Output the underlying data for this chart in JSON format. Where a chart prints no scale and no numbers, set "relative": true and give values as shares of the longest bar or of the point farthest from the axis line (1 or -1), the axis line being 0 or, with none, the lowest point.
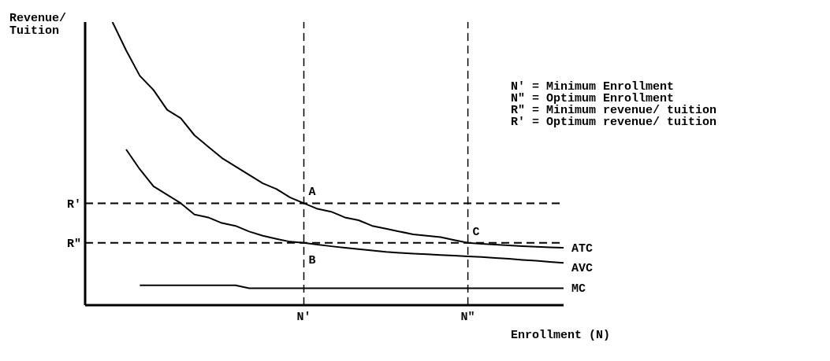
{
  "chart_data": {
    "type": "line",
    "relative": true,
    "xlabel": "Enrollment (N)",
    "ylabel": "Revenue/\nTuition",
    "categories": [
      null,
      null,
      null,
      null,
      null,
      null,
      null,
      null,
      null,
      null,
      null,
      null,
      null,
      null,
      null,
      null,
      "N'",
      null,
      null,
      null,
      null,
      null,
      null,
      null,
      null,
      null,
      null,
      null,
      "N\"",
      null,
      null,
      null,
      null,
      null,
      null,
      null
    ],
    "series": [
      {
        "name": "ATC",
        "color": "#000000",
        "values": [
          null,
          null,
          1,
          0.9,
          0.81,
          0.76,
          0.69,
          0.66,
          0.6,
          0.56,
          0.52,
          0.49,
          0.46,
          0.43,
          0.41,
          0.38,
          0.36,
          0.34,
          0.33,
          0.31,
          0.3,
          0.28,
          0.27,
          0.26,
          0.25,
          0.245,
          0.24,
          0.23,
          0.22,
          0.217,
          0.214,
          0.211,
          0.208,
          0.206,
          0.204,
          0.203
        ]
      },
      {
        "name": "AVC",
        "color": "#000000",
        "values": [
          null,
          null,
          null,
          0.55,
          0.48,
          0.42,
          0.39,
          0.36,
          0.32,
          0.31,
          0.29,
          0.28,
          0.26,
          0.245,
          0.234,
          0.224,
          0.22,
          0.214,
          0.208,
          0.203,
          0.198,
          0.193,
          0.188,
          0.185,
          0.182,
          0.18,
          0.177,
          0.175,
          0.172,
          0.17,
          0.167,
          0.164,
          0.16,
          0.157,
          0.153,
          0.149
        ]
      },
      {
        "name": "MC",
        "color": "#000000",
        "values": [
          null,
          null,
          null,
          null,
          0.07,
          0.07,
          0.07,
          0.07,
          0.07,
          0.07,
          0.07,
          0.07,
          0.06,
          0.06,
          0.06,
          0.06,
          0.06,
          0.06,
          0.06,
          0.06,
          0.06,
          0.06,
          0.06,
          0.06,
          0.06,
          0.06,
          0.06,
          0.06,
          0.06,
          0.06,
          0.06,
          0.06,
          0.06,
          0.06,
          0.06,
          0.06
        ]
      }
    ],
    "ref_lines": [
      {
        "axis": "y",
        "value": 0.36,
        "label": "R'",
        "color": "#000000",
        "line_style": "dashed"
      },
      {
        "axis": "y",
        "value": 0.22,
        "label": "R\"",
        "color": "#000000",
        "line_style": "dashed"
      },
      {
        "axis": "x",
        "value": "N'",
        "color": "#000000",
        "line_style": "dashed"
      },
      {
        "axis": "x",
        "value": "N\"",
        "color": "#000000",
        "line_style": "dashed"
      }
    ],
    "annotations": [
      {
        "text": "A",
        "x": "N'",
        "y": 0.36
      },
      {
        "text": "B",
        "x": "N'",
        "y": 0.22
      },
      {
        "text": "C",
        "x": "N\"",
        "y": 0.22
      },
      "N' = Minimum Enrollment",
      "N\" = Optimum Enrollment",
      "R\" = Minimum revenue/ tuition",
      "R' = Optimum revenue/ tuition"
    ],
    "marker": "none",
    "line_style": "solid",
    "grid": false,
    "legend": false
  }
}
